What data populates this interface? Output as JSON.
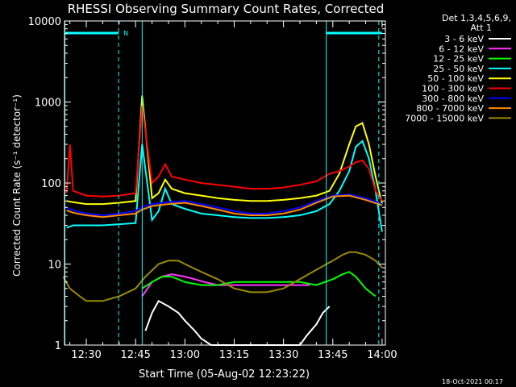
{
  "chart_data": {
    "type": "line",
    "title": "RHESSI Observing Summary Count Rates, Corrected",
    "xlabel": "Start Time (05-Aug-02 12:23:22)",
    "ylabel": "Corrected Count Rate (s⁻¹ detector⁻¹)",
    "yscale": "log",
    "xlim": [
      "12:23:22",
      "14:01:00"
    ],
    "ylim": [
      1,
      10000
    ],
    "x_ticks": [
      "12:30",
      "12:45",
      "13:00",
      "13:15",
      "13:30",
      "13:45",
      "14:00"
    ],
    "y_ticks": [
      "1",
      "10",
      "100",
      "1000",
      "10000"
    ],
    "grid": false,
    "legend_header": [
      "Det 1,3,4,5,6,9,",
      "Att 1"
    ],
    "legend_position": "right",
    "markers": {
      "solid_lines": [
        "12:23:30",
        "12:47:00",
        "13:43:00"
      ],
      "dashed_lines": [
        "12:39:50",
        "13:59:00"
      ],
      "night_bars": [
        [
          "12:23:30",
          "12:39:50"
        ],
        [
          "13:43:00",
          "14:00:00"
        ]
      ],
      "night_label": "N"
    },
    "series": [
      {
        "name": "3 - 6 keV",
        "color": "#ffffff",
        "x": [
          "12:48",
          "12:50",
          "12:52",
          "12:55",
          "12:58",
          "13:00",
          "13:03",
          "13:05",
          "13:08",
          "13:35",
          "13:37",
          "13:40",
          "13:42",
          "13:44"
        ],
        "y": [
          1.5,
          2.5,
          3.5,
          3.0,
          2.5,
          2.0,
          1.5,
          1.2,
          1.0,
          1.0,
          1.3,
          1.8,
          2.5,
          3.0
        ]
      },
      {
        "name": "6 - 12 keV",
        "color": "#ff33ff",
        "x": [
          "12:47",
          "12:50",
          "12:53",
          "12:56",
          "13:00",
          "13:03",
          "13:06",
          "13:10",
          "13:15",
          "13:20",
          "13:25",
          "13:30",
          "13:35",
          "13:38"
        ],
        "y": [
          4.0,
          6.0,
          7.0,
          7.5,
          7.0,
          6.5,
          6.0,
          5.5,
          5.5,
          5.5,
          5.5,
          5.5,
          5.5,
          5.5
        ]
      },
      {
        "name": "12 - 25 keV",
        "color": "#00ff00",
        "x": [
          "12:47",
          "12:50",
          "12:53",
          "12:56",
          "13:00",
          "13:05",
          "13:10",
          "13:15",
          "13:20",
          "13:25",
          "13:30",
          "13:35",
          "13:40",
          "13:45",
          "13:48",
          "13:50",
          "13:52",
          "13:55",
          "13:58"
        ],
        "y": [
          5.0,
          6.0,
          7.0,
          7.0,
          6.0,
          5.5,
          5.5,
          6.0,
          6.0,
          6.0,
          6.0,
          6.0,
          5.5,
          6.5,
          7.5,
          8.0,
          7.0,
          5.0,
          4.0
        ]
      },
      {
        "name": "25 - 50 keV",
        "color": "#00ffff",
        "x": [
          "12:24",
          "12:26",
          "12:30",
          "12:35",
          "12:40",
          "12:45",
          "12:47",
          "12:50",
          "12:52",
          "12:54",
          "12:56",
          "13:00",
          "13:05",
          "13:10",
          "13:15",
          "13:20",
          "13:25",
          "13:30",
          "13:35",
          "13:40",
          "13:44",
          "13:47",
          "13:50",
          "13:52",
          "13:54",
          "13:56",
          "13:58",
          "14:00"
        ],
        "y": [
          28,
          30,
          30,
          30,
          31,
          32,
          300,
          35,
          45,
          85,
          55,
          48,
          42,
          40,
          38,
          37,
          37,
          38,
          40,
          45,
          55,
          80,
          140,
          280,
          330,
          200,
          80,
          25
        ]
      },
      {
        "name": "50 - 100 keV",
        "color": "#ffff00",
        "x": [
          "12:24",
          "12:26",
          "12:30",
          "12:35",
          "12:40",
          "12:45",
          "12:47",
          "12:50",
          "12:52",
          "12:54",
          "12:56",
          "13:00",
          "13:05",
          "13:10",
          "13:15",
          "13:20",
          "13:25",
          "13:30",
          "13:35",
          "13:40",
          "13:44",
          "13:47",
          "13:50",
          "13:52",
          "13:54",
          "13:56",
          "13:58",
          "14:00"
        ],
        "y": [
          60,
          58,
          55,
          55,
          57,
          60,
          1200,
          65,
          75,
          110,
          85,
          75,
          70,
          65,
          62,
          60,
          60,
          62,
          65,
          70,
          80,
          130,
          300,
          500,
          550,
          300,
          120,
          55
        ]
      },
      {
        "name": "100 - 300 keV",
        "color": "#ff0000",
        "x": [
          "12:24",
          "12:25",
          "12:26",
          "12:30",
          "12:35",
          "12:40",
          "12:45",
          "12:47",
          "12:50",
          "12:52",
          "12:54",
          "12:56",
          "13:00",
          "13:05",
          "13:10",
          "13:15",
          "13:20",
          "13:25",
          "13:30",
          "13:35",
          "13:40",
          "13:44",
          "13:47",
          "13:50",
          "13:52",
          "13:54",
          "13:56",
          "13:58",
          "14:00"
        ],
        "y": [
          75,
          300,
          80,
          70,
          68,
          70,
          75,
          900,
          100,
          120,
          170,
          120,
          110,
          100,
          95,
          90,
          85,
          85,
          88,
          95,
          105,
          130,
          140,
          160,
          180,
          190,
          150,
          80,
          60
        ]
      },
      {
        "name": "300 - 800 keV",
        "color": "#0000ff",
        "x": [
          "12:24",
          "12:26",
          "12:30",
          "12:35",
          "12:40",
          "12:45",
          "12:47",
          "12:50",
          "12:55",
          "13:00",
          "13:05",
          "13:10",
          "13:15",
          "13:20",
          "13:25",
          "13:30",
          "13:35",
          "13:40",
          "13:45",
          "13:50",
          "13:55",
          "14:00"
        ],
        "y": [
          50,
          46,
          42,
          40,
          42,
          45,
          50,
          55,
          58,
          60,
          55,
          50,
          45,
          42,
          42,
          45,
          50,
          60,
          70,
          72,
          65,
          55
        ]
      },
      {
        "name": "800 - 7000 keV",
        "color": "#ff8c00",
        "x": [
          "12:24",
          "12:26",
          "12:30",
          "12:35",
          "12:40",
          "12:45",
          "12:47",
          "12:50",
          "12:55",
          "13:00",
          "13:05",
          "13:10",
          "13:15",
          "13:20",
          "13:25",
          "13:30",
          "13:35",
          "13:40",
          "13:45",
          "13:50",
          "13:55",
          "14:00"
        ],
        "y": [
          46,
          43,
          40,
          38,
          40,
          42,
          47,
          52,
          55,
          57,
          52,
          47,
          42,
          40,
          40,
          42,
          47,
          57,
          68,
          70,
          62,
          53
        ]
      },
      {
        "name": "7000 - 15000 keV",
        "color": "#9b8a00",
        "x": [
          "12:23",
          "12:25",
          "12:28",
          "12:30",
          "12:35",
          "12:40",
          "12:45",
          "12:48",
          "12:52",
          "12:55",
          "12:58",
          "13:00",
          "13:05",
          "13:10",
          "13:15",
          "13:20",
          "13:25",
          "13:30",
          "13:35",
          "13:40",
          "13:45",
          "13:48",
          "13:50",
          "13:52",
          "13:55",
          "13:58",
          "14:00"
        ],
        "y": [
          7,
          5,
          4,
          3.5,
          3.5,
          4,
          5,
          7,
          10,
          11,
          11,
          10,
          8,
          6.5,
          5,
          4.5,
          4.5,
          5,
          6.5,
          8.5,
          11,
          13,
          14,
          14,
          13,
          11,
          9
        ]
      }
    ]
  },
  "footer": {
    "timestamp": "18-Oct-2021 00:17"
  }
}
